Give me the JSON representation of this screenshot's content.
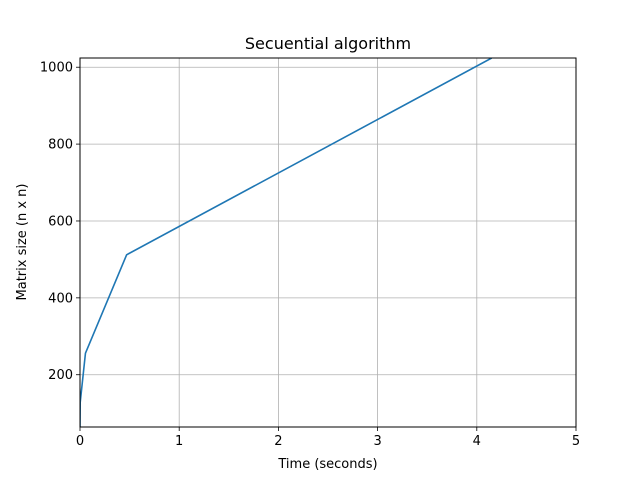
{
  "chart_data": {
    "type": "line",
    "title": "Secuential algorithm",
    "xlabel": "Time (seconds)",
    "ylabel": "Matrix size (n x n)",
    "xlim": [
      0,
      5
    ],
    "ylim": [
      64,
      1024
    ],
    "xticks": [
      0,
      1,
      2,
      3,
      4,
      5
    ],
    "yticks": [
      200,
      400,
      600,
      800,
      1000
    ],
    "grid": true,
    "line_color": "#1f77b4",
    "series": [
      {
        "x": [
          0.0,
          0.002,
          0.055,
          0.47,
          4.15
        ],
        "y": [
          64,
          128,
          256,
          512,
          1024
        ]
      }
    ]
  }
}
